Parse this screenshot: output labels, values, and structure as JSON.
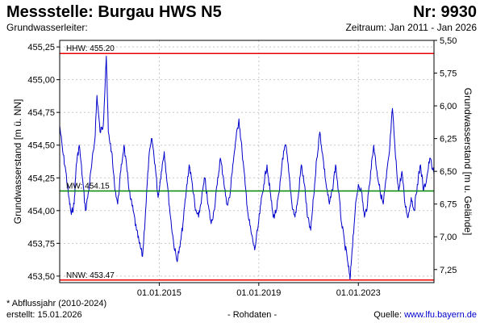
{
  "header": {
    "title": "Messstelle: Burgau HWS N5",
    "number": "Nr: 9930",
    "left_label": "Grundwasserleiter:",
    "period": "Zeitraum: Jan 2011 - Jan 2026"
  },
  "footer": {
    "note": "* Abflussjahr (2010-2024)",
    "created": "erstellt:  15.01.2026",
    "raw": "- Rohdaten -",
    "source_prefix": "Quelle: ",
    "source": "www.lfu.bayern.de"
  },
  "colors": {
    "series": "#0000cc",
    "hhw": "#ee0000",
    "nnw": "#ee0000",
    "mw": "#008800",
    "grid": "#c8c8c8"
  },
  "chart_data": {
    "type": "line",
    "ylabel": "Grundwasserstand [m ü. NN]",
    "ylabel_right": "Grundwasserstand [m u. Gelände]",
    "ylim": [
      453.45,
      455.3
    ],
    "xlim": [
      "2011-01-01",
      "2026-01-15"
    ],
    "grid": true,
    "y_ticks": [
      "455,25",
      "455,00",
      "454,75",
      "454,50",
      "454,25",
      "454,00",
      "453,75",
      "453,50"
    ],
    "y_tick_values": [
      455.25,
      455.0,
      454.75,
      454.5,
      454.25,
      454.0,
      453.75,
      453.5
    ],
    "y_ticks_right": [
      "5,50",
      "5,75",
      "6,00",
      "6,25",
      "6,50",
      "6,75",
      "7,00",
      "7,25"
    ],
    "y_ticks_right_values": [
      5.5,
      5.75,
      6.0,
      6.25,
      6.5,
      6.75,
      7.0,
      7.25
    ],
    "x_ticks": [
      "01.01.2015",
      "01.01.2019",
      "01.01.2023"
    ],
    "x_tick_values": [
      "2015-01-01",
      "2019-01-01",
      "2023-01-01"
    ],
    "reference_lines": [
      {
        "label": "HHW: 455.20",
        "value": 455.2,
        "color": "#ee0000"
      },
      {
        "label": "MW: 454.15",
        "value": 454.15,
        "color": "#008800"
      },
      {
        "label": "NNW: 453.47",
        "value": 453.47,
        "color": "#ee0000"
      }
    ],
    "series": [
      {
        "values": [
          [
            "2011-01-01",
            454.65
          ],
          [
            "2011-02-15",
            454.45
          ],
          [
            "2011-04-01",
            454.3
          ],
          [
            "2011-05-15",
            454.1
          ],
          [
            "2011-06-20",
            453.97
          ],
          [
            "2011-08-01",
            454.05
          ],
          [
            "2011-09-01",
            454.35
          ],
          [
            "2011-10-15",
            454.5
          ],
          [
            "2011-12-01",
            454.25
          ],
          [
            "2012-01-15",
            454.0
          ],
          [
            "2012-03-01",
            454.15
          ],
          [
            "2012-04-15",
            454.35
          ],
          [
            "2012-06-01",
            454.55
          ],
          [
            "2012-07-01",
            454.88
          ],
          [
            "2012-08-15",
            454.6
          ],
          [
            "2012-10-01",
            454.65
          ],
          [
            "2012-11-15",
            455.18
          ],
          [
            "2012-12-15",
            454.6
          ],
          [
            "2013-02-01",
            454.45
          ],
          [
            "2013-03-15",
            454.2
          ],
          [
            "2013-05-01",
            454.05
          ],
          [
            "2013-06-15",
            454.3
          ],
          [
            "2013-08-01",
            454.5
          ],
          [
            "2013-09-15",
            454.3
          ],
          [
            "2013-11-01",
            454.1
          ],
          [
            "2013-12-15",
            454.0
          ],
          [
            "2014-02-01",
            453.85
          ],
          [
            "2014-03-15",
            453.75
          ],
          [
            "2014-05-01",
            453.65
          ],
          [
            "2014-06-15",
            454.0
          ],
          [
            "2014-08-01",
            454.4
          ],
          [
            "2014-09-15",
            454.55
          ],
          [
            "2014-11-01",
            454.35
          ],
          [
            "2014-12-15",
            454.1
          ],
          [
            "2015-02-01",
            454.3
          ],
          [
            "2015-03-15",
            454.45
          ],
          [
            "2015-05-01",
            454.2
          ],
          [
            "2015-06-15",
            453.95
          ],
          [
            "2015-08-01",
            453.75
          ],
          [
            "2015-09-15",
            453.62
          ],
          [
            "2015-11-01",
            453.72
          ],
          [
            "2015-12-15",
            453.9
          ],
          [
            "2016-02-01",
            454.15
          ],
          [
            "2016-03-15",
            454.35
          ],
          [
            "2016-05-01",
            454.2
          ],
          [
            "2016-06-15",
            454.0
          ],
          [
            "2016-08-01",
            453.95
          ],
          [
            "2016-09-15",
            454.1
          ],
          [
            "2016-11-01",
            454.25
          ],
          [
            "2016-12-15",
            454.05
          ],
          [
            "2017-02-01",
            453.9
          ],
          [
            "2017-03-15",
            454.0
          ],
          [
            "2017-05-01",
            454.2
          ],
          [
            "2017-06-15",
            454.4
          ],
          [
            "2017-08-01",
            454.25
          ],
          [
            "2017-09-15",
            454.05
          ],
          [
            "2017-11-01",
            454.1
          ],
          [
            "2017-12-15",
            454.35
          ],
          [
            "2018-02-01",
            454.55
          ],
          [
            "2018-03-15",
            454.7
          ],
          [
            "2018-05-01",
            454.45
          ],
          [
            "2018-06-15",
            454.2
          ],
          [
            "2018-08-01",
            453.95
          ],
          [
            "2018-09-15",
            453.82
          ],
          [
            "2018-11-01",
            453.7
          ],
          [
            "2018-12-15",
            453.85
          ],
          [
            "2019-02-01",
            454.05
          ],
          [
            "2019-03-15",
            454.2
          ],
          [
            "2019-05-01",
            454.35
          ],
          [
            "2019-06-15",
            454.15
          ],
          [
            "2019-08-01",
            453.95
          ],
          [
            "2019-09-15",
            454.0
          ],
          [
            "2019-11-01",
            454.15
          ],
          [
            "2019-12-15",
            454.4
          ],
          [
            "2020-02-01",
            454.5
          ],
          [
            "2020-03-15",
            454.3
          ],
          [
            "2020-05-01",
            454.05
          ],
          [
            "2020-06-15",
            453.95
          ],
          [
            "2020-08-01",
            454.1
          ],
          [
            "2020-09-15",
            454.35
          ],
          [
            "2020-11-01",
            454.2
          ],
          [
            "2020-12-15",
            453.95
          ],
          [
            "2021-02-01",
            453.85
          ],
          [
            "2021-03-15",
            454.1
          ],
          [
            "2021-05-01",
            454.4
          ],
          [
            "2021-06-15",
            454.6
          ],
          [
            "2021-08-01",
            454.4
          ],
          [
            "2021-09-15",
            454.2
          ],
          [
            "2021-11-01",
            454.05
          ],
          [
            "2021-12-15",
            454.15
          ],
          [
            "2022-02-01",
            454.35
          ],
          [
            "2022-03-15",
            454.15
          ],
          [
            "2022-05-01",
            453.9
          ],
          [
            "2022-06-15",
            453.75
          ],
          [
            "2022-08-01",
            453.6
          ],
          [
            "2022-09-01",
            453.47
          ],
          [
            "2022-10-01",
            453.7
          ],
          [
            "2022-11-15",
            454.0
          ],
          [
            "2023-01-01",
            454.2
          ],
          [
            "2023-02-15",
            454.15
          ],
          [
            "2023-04-01",
            453.95
          ],
          [
            "2023-05-15",
            454.05
          ],
          [
            "2023-07-01",
            454.3
          ],
          [
            "2023-08-15",
            454.5
          ],
          [
            "2023-10-01",
            454.3
          ],
          [
            "2023-11-15",
            454.15
          ],
          [
            "2024-01-01",
            454.05
          ],
          [
            "2024-02-15",
            454.25
          ],
          [
            "2024-04-01",
            454.45
          ],
          [
            "2024-05-15",
            454.78
          ],
          [
            "2024-07-01",
            454.4
          ],
          [
            "2024-08-15",
            454.15
          ],
          [
            "2024-10-01",
            454.3
          ],
          [
            "2024-11-15",
            454.05
          ],
          [
            "2025-01-01",
            453.95
          ],
          [
            "2025-02-15",
            454.1
          ],
          [
            "2025-04-01",
            454.0
          ],
          [
            "2025-05-15",
            454.2
          ],
          [
            "2025-07-01",
            454.35
          ],
          [
            "2025-08-15",
            454.15
          ],
          [
            "2025-10-01",
            454.25
          ],
          [
            "2025-11-15",
            454.4
          ],
          [
            "2026-01-15",
            454.28
          ]
        ]
      }
    ]
  }
}
